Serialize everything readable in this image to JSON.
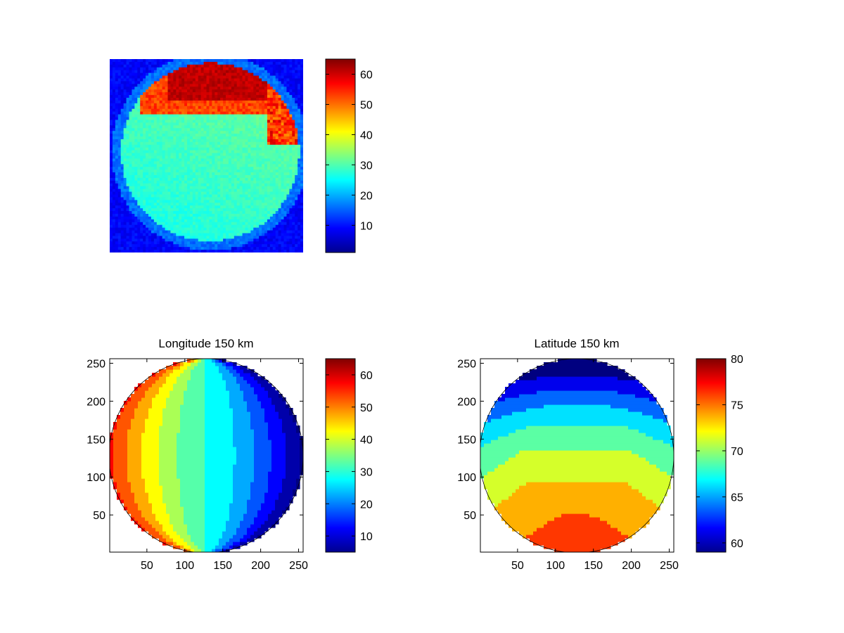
{
  "chart_data": [
    {
      "id": "image",
      "type": "heatmap",
      "description_visible": "false-color image of circular sky view",
      "axes_visible": false,
      "colormap": "jet",
      "colorbar": {
        "ticks": [
          10,
          20,
          30,
          40,
          50,
          60
        ],
        "range": [
          1,
          65
        ]
      },
      "disc_center": [
        0.52,
        0.48
      ],
      "disc_radius": 0.46,
      "regions": [
        {
          "name": "background",
          "value": 7
        },
        {
          "name": "disc-interior",
          "value": 28
        },
        {
          "name": "upper-rim",
          "value": 63
        },
        {
          "name": "orange-band",
          "value": 50
        }
      ]
    },
    {
      "id": "longitude",
      "type": "contour",
      "title": "Longitude 150 km",
      "xlim": [
        1,
        256
      ],
      "ylim": [
        1,
        256
      ],
      "xticks": [
        50,
        100,
        150,
        200,
        250
      ],
      "yticks": [
        50,
        100,
        150,
        200,
        250
      ],
      "colorbar": {
        "ticks": [
          10,
          20,
          30,
          40,
          50,
          60
        ],
        "range": [
          5,
          65
        ]
      },
      "value_range": [
        5,
        65
      ],
      "disc_center": [
        128,
        128
      ],
      "disc_radius": 128,
      "contour_spacing": 5
    },
    {
      "id": "latitude",
      "type": "contour",
      "title": "Latitude 150 km",
      "xlim": [
        1,
        256
      ],
      "ylim": [
        1,
        256
      ],
      "xticks": [
        50,
        100,
        150,
        200,
        250
      ],
      "yticks": [
        50,
        100,
        150,
        200,
        250
      ],
      "colorbar": {
        "ticks": [
          60,
          65,
          70,
          75,
          80
        ],
        "range": [
          59,
          80
        ]
      },
      "value_range": [
        59,
        80
      ],
      "disc_center": [
        128,
        128
      ],
      "disc_radius": 128,
      "contour_spacing": 2.5
    }
  ]
}
